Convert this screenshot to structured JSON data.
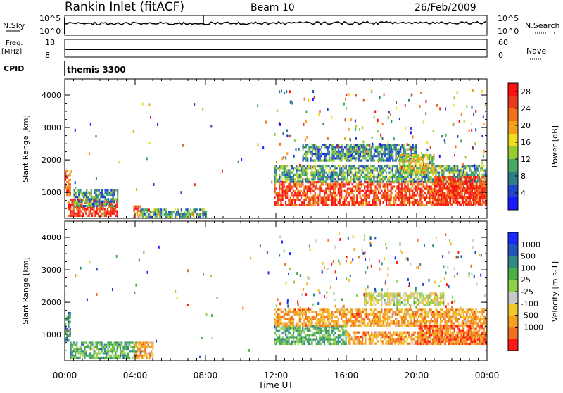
{
  "header": {
    "station": "Rankin Inlet (fitACF)",
    "beam": "Beam 10",
    "date": "26/Feb/2009"
  },
  "top_panels": {
    "nsky_label": "N.Sky",
    "nsky_ticks": [
      "10^5",
      "10^0"
    ],
    "nsearch_label": "N.Search",
    "nsearch_ticks": [
      "10^5",
      "10^0"
    ],
    "freq_label": "Freq.",
    "freq_unit": "[MHz]",
    "freq_ticks": [
      "18",
      "8"
    ],
    "nave_label": "Nave",
    "nave_ticks": [
      "60",
      "0"
    ],
    "cpid_label": "CPID",
    "cpid_value": "themis 3300"
  },
  "chart_data": [
    {
      "type": "heatmap",
      "name": "power",
      "ylabel": "Slant Range [km]",
      "xlabel": "Time UT",
      "x_ticks": [
        "00:00",
        "04:00",
        "08:00",
        "12:00",
        "16:00",
        "20:00",
        "00:00"
      ],
      "x_range_hours": [
        0,
        24
      ],
      "y_ticks": [
        1000,
        2000,
        3000,
        4000
      ],
      "ylim": [
        200,
        4500
      ],
      "colorbar": {
        "label": "Power [dB]",
        "ticks": [
          "4",
          "8",
          "12",
          "16",
          "20",
          "24",
          "28"
        ],
        "range": [
          0,
          30
        ],
        "colors": [
          "#1a1aff",
          "#2244cc",
          "#2d7d8a",
          "#44aa66",
          "#99cc33",
          "#f0dd22",
          "#f4a21e",
          "#f0701a",
          "#e83a1a",
          "#ff1010"
        ]
      },
      "regions": [
        {
          "t0": 0.0,
          "t1": 0.3,
          "r0": 900,
          "r1": 1700,
          "v": 24
        },
        {
          "t0": 0.2,
          "t1": 3.0,
          "r0": 250,
          "r1": 800,
          "v": 28
        },
        {
          "t0": 0.5,
          "t1": 3.0,
          "r0": 600,
          "r1": 1100,
          "v": 8
        },
        {
          "t0": 3.9,
          "t1": 4.3,
          "r0": 250,
          "r1": 600,
          "v": 24
        },
        {
          "t0": 4.3,
          "t1": 8.0,
          "r0": 250,
          "r1": 500,
          "v": 10
        },
        {
          "t0": 11.9,
          "t1": 24.0,
          "r0": 650,
          "r1": 1350,
          "v": 26
        },
        {
          "t0": 11.9,
          "t1": 24.0,
          "r0": 1350,
          "r1": 1850,
          "v": 10
        },
        {
          "t0": 13.5,
          "t1": 20.0,
          "r0": 2000,
          "r1": 2500,
          "v": 8
        },
        {
          "t0": 19.0,
          "t1": 21.0,
          "r0": 1600,
          "r1": 2200,
          "v": 16
        },
        {
          "t0": 21.0,
          "t1": 24.0,
          "r0": 600,
          "r1": 1500,
          "v": 28
        }
      ]
    },
    {
      "type": "heatmap",
      "name": "velocity",
      "ylabel": "Slant Range [km]",
      "xlabel": "Time UT",
      "x_ticks": [
        "00:00",
        "04:00",
        "08:00",
        "12:00",
        "16:00",
        "20:00",
        "00:00"
      ],
      "x_range_hours": [
        0,
        24
      ],
      "y_ticks": [
        1000,
        2000,
        3000,
        4000
      ],
      "ylim": [
        200,
        4500
      ],
      "colorbar": {
        "label": "Velocity [m s-1]",
        "ticks": [
          "1000",
          "500",
          "100",
          "25",
          "-25",
          "-100",
          "-500",
          "-1000"
        ],
        "colors": [
          "#1a2aff",
          "#2255bb",
          "#2f8a88",
          "#4ab044",
          "#8ed04a",
          "#c8c8c8",
          "#f0c830",
          "#f5a020",
          "#f07020",
          "#ff1a1a"
        ]
      },
      "regions": [
        {
          "t0": 0.0,
          "t1": 0.3,
          "r0": 800,
          "r1": 1700,
          "v": 2
        },
        {
          "t0": 0.3,
          "t1": 4.0,
          "r0": 300,
          "r1": 800,
          "v": 3
        },
        {
          "t0": 4.0,
          "t1": 5.0,
          "r0": 300,
          "r1": 800,
          "v": 7
        },
        {
          "t0": 11.9,
          "t1": 16.0,
          "r0": 700,
          "r1": 1300,
          "v": 3
        },
        {
          "t0": 11.9,
          "t1": 24.0,
          "r0": 1300,
          "r1": 1800,
          "v": 7
        },
        {
          "t0": 16.0,
          "t1": 24.0,
          "r0": 700,
          "r1": 1100,
          "v": 7
        },
        {
          "t0": 17.0,
          "t1": 21.5,
          "r0": 1900,
          "r1": 2300,
          "v": 5
        },
        {
          "t0": 20.0,
          "t1": 24.0,
          "r0": 700,
          "r1": 1300,
          "v": 8
        }
      ]
    }
  ]
}
